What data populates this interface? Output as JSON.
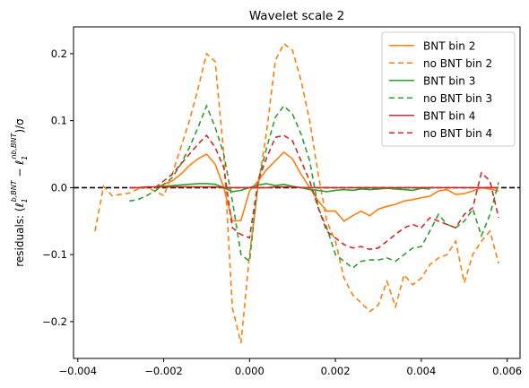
{
  "chart_data": {
    "type": "line",
    "title": "Wavelet scale 2",
    "xlabel": "",
    "ylabel": "residuals: (ℓ₁^{b,BNT} − ℓ₁^{nb,BNT})/σ",
    "ylabel_parts": {
      "prefix": "residuals: (",
      "sym1": "ℓ",
      "sub1": "1",
      "sup1": "b,BNT",
      "minus": " − ",
      "sym2": "ℓ",
      "sub2": "1",
      "sup2": "nb,BNT",
      "suffix": ")/σ"
    },
    "xlim": [
      -0.0041,
      0.0063
    ],
    "ylim": [
      -0.255,
      0.24
    ],
    "xticks": [
      -0.004,
      -0.002,
      0.0,
      0.002,
      0.004,
      0.006
    ],
    "xtick_labels": [
      "−0.004",
      "−0.002",
      "0.000",
      "0.002",
      "0.004",
      "0.006"
    ],
    "yticks": [
      -0.2,
      -0.1,
      0.0,
      0.1,
      0.2
    ],
    "ytick_labels": [
      "−0.2",
      "−0.1",
      "0.0",
      "0.1",
      "0.2"
    ],
    "grid": false,
    "legend_position": "top-right",
    "hline": {
      "y": 0,
      "color": "#000000",
      "style": "dashed"
    },
    "series": [
      {
        "name": "BNT bin 2",
        "color": "#ff7f0e",
        "style": "solid",
        "x": [
          -0.0022,
          -0.002,
          -0.0018,
          -0.0016,
          -0.0014,
          -0.0012,
          -0.001,
          -0.0008,
          -0.0006,
          -0.0004,
          -0.0002,
          0.0,
          0.0002,
          0.0004,
          0.0006,
          0.0008,
          0.001,
          0.0012,
          0.0014,
          0.0016,
          0.0018,
          0.002,
          0.0022,
          0.0024,
          0.0026,
          0.0028,
          0.003,
          0.0032,
          0.0034,
          0.0036,
          0.0038,
          0.004,
          0.0042,
          0.0044,
          0.0046,
          0.0048,
          0.005,
          0.0052,
          0.0054,
          0.0056,
          0.0058
        ],
        "y": [
          0.0,
          0.005,
          0.01,
          0.02,
          0.033,
          0.043,
          0.05,
          0.035,
          0.0,
          -0.05,
          -0.049,
          -0.005,
          0.01,
          0.027,
          0.04,
          0.053,
          0.043,
          0.02,
          0.0,
          -0.02,
          -0.035,
          -0.035,
          -0.05,
          -0.042,
          -0.035,
          -0.042,
          -0.032,
          -0.028,
          -0.025,
          -0.02,
          -0.018,
          -0.015,
          -0.013,
          -0.005,
          -0.003,
          -0.01,
          -0.009,
          -0.005,
          0.0,
          -0.002,
          -0.005
        ]
      },
      {
        "name": "no BNT bin 2",
        "color": "#ff7f0e",
        "style": "dashed",
        "x": [
          -0.0036,
          -0.0034,
          -0.0032,
          -0.003,
          -0.0028,
          -0.0026,
          -0.0024,
          -0.0022,
          -0.002,
          -0.0018,
          -0.0016,
          -0.0014,
          -0.0012,
          -0.001,
          -0.0008,
          -0.0006,
          -0.0004,
          -0.0002,
          0.0,
          0.0002,
          0.0004,
          0.0006,
          0.0008,
          0.001,
          0.0012,
          0.0014,
          0.0016,
          0.0018,
          0.002,
          0.0022,
          0.0024,
          0.0026,
          0.0028,
          0.003,
          0.0032,
          0.0034,
          0.0036,
          0.0038,
          0.004,
          0.0042,
          0.0044,
          0.0046,
          0.0048,
          0.005,
          0.0052,
          0.0054,
          0.0056,
          0.0058
        ],
        "y": [
          -0.065,
          0.002,
          -0.012,
          -0.01,
          -0.008,
          -0.002,
          0.0,
          -0.005,
          -0.012,
          0.02,
          0.06,
          0.1,
          0.148,
          0.2,
          0.188,
          0.05,
          -0.18,
          -0.232,
          -0.1,
          0.002,
          0.085,
          0.19,
          0.215,
          0.205,
          0.16,
          0.1,
          0.02,
          -0.05,
          -0.08,
          -0.135,
          -0.16,
          -0.172,
          -0.185,
          -0.175,
          -0.14,
          -0.178,
          -0.13,
          -0.145,
          -0.135,
          -0.115,
          -0.105,
          -0.1,
          -0.08,
          -0.142,
          -0.1,
          -0.08,
          -0.065,
          -0.113
        ]
      },
      {
        "name": "BNT bin 3",
        "color": "#2ca02c",
        "style": "solid",
        "x": [
          -0.0022,
          -0.002,
          -0.0018,
          -0.0016,
          -0.0014,
          -0.0012,
          -0.001,
          -0.0008,
          -0.0006,
          -0.0004,
          -0.0002,
          0.0,
          0.0002,
          0.0004,
          0.0006,
          0.0008,
          0.001,
          0.0012,
          0.0014,
          0.0016,
          0.0018,
          0.002,
          0.0022,
          0.0024,
          0.0026,
          0.0028,
          0.003,
          0.0032,
          0.0034,
          0.0036,
          0.0038,
          0.004,
          0.0042
        ],
        "y": [
          0.0,
          0.002,
          0.003,
          0.004,
          0.005,
          0.006,
          0.006,
          0.005,
          0.0,
          -0.006,
          -0.004,
          0.0,
          0.004,
          0.006,
          0.003,
          0.005,
          0.002,
          0.0,
          -0.003,
          -0.004,
          -0.006,
          -0.004,
          -0.003,
          -0.004,
          -0.002,
          -0.003,
          -0.002,
          -0.001,
          -0.002,
          -0.003,
          -0.004,
          -0.001,
          -0.002
        ]
      },
      {
        "name": "no BNT bin 3",
        "color": "#2ca02c",
        "style": "dashed",
        "x": [
          -0.0028,
          -0.0026,
          -0.0024,
          -0.0022,
          -0.002,
          -0.0018,
          -0.0016,
          -0.0014,
          -0.0012,
          -0.001,
          -0.0008,
          -0.0006,
          -0.0004,
          -0.0002,
          0.0,
          0.0002,
          0.0004,
          0.0006,
          0.0008,
          0.001,
          0.0012,
          0.0014,
          0.0016,
          0.0018,
          0.002,
          0.0022,
          0.0024,
          0.0026,
          0.0028,
          0.003,
          0.0032,
          0.0034,
          0.0036,
          0.0038,
          0.004,
          0.0042,
          0.0044,
          0.0046,
          0.0048,
          0.005,
          0.0052,
          0.0054,
          0.0056,
          0.0058
        ],
        "y": [
          -0.02,
          -0.018,
          -0.012,
          -0.005,
          0.005,
          0.015,
          0.035,
          0.06,
          0.09,
          0.122,
          0.09,
          0.05,
          -0.02,
          -0.1,
          -0.11,
          0.01,
          0.06,
          0.105,
          0.122,
          0.11,
          0.08,
          0.04,
          -0.03,
          -0.06,
          -0.1,
          -0.11,
          -0.12,
          -0.11,
          -0.108,
          -0.108,
          -0.105,
          -0.11,
          -0.1,
          -0.09,
          -0.088,
          -0.065,
          -0.04,
          -0.055,
          -0.06,
          -0.05,
          -0.032,
          -0.072,
          -0.04,
          0.008
        ]
      },
      {
        "name": "BNT bin 4",
        "color": "#d62728",
        "style": "solid",
        "x": [
          -0.0028,
          -0.0026,
          -0.0024,
          -0.0022,
          -0.002,
          -0.0018,
          -0.0016,
          -0.0014,
          -0.0012,
          -0.001,
          -0.0008,
          -0.0006,
          -0.0004,
          -0.0002,
          0.0,
          0.0002,
          0.0004,
          0.0006,
          0.0008,
          0.001,
          0.0012,
          0.0014,
          0.0016,
          0.0018,
          0.002,
          0.0022,
          0.0024,
          0.0026,
          0.0028,
          0.003,
          0.0032,
          0.0034,
          0.0036,
          0.0038,
          0.004,
          0.0042,
          0.0044,
          0.0046,
          0.0048,
          0.005,
          0.0052,
          0.0054,
          0.0056,
          0.0058
        ],
        "y": [
          0.0,
          0.0,
          0.001,
          0.001,
          0.001,
          0.001,
          0.001,
          0.001,
          0.001,
          0.001,
          0.001,
          0.0,
          0.0,
          0.0,
          0.0,
          0.0,
          0.0,
          0.001,
          0.001,
          0.001,
          0.0,
          0.0,
          0.0,
          0.0,
          0.0,
          0.0,
          0.0,
          0.0,
          0.0,
          0.0,
          0.0,
          0.0,
          0.0,
          0.0,
          0.0,
          0.0,
          0.0,
          0.0,
          0.0,
          0.0,
          0.0,
          0.0,
          0.0,
          0.0
        ]
      },
      {
        "name": "no BNT bin 4",
        "color": "#d62728",
        "style": "dashed",
        "x": [
          -0.0022,
          -0.002,
          -0.0018,
          -0.0016,
          -0.0014,
          -0.0012,
          -0.001,
          -0.0008,
          -0.0006,
          -0.0004,
          -0.0002,
          0.0,
          0.0002,
          0.0004,
          0.0006,
          0.0008,
          0.001,
          0.0012,
          0.0014,
          0.0016,
          0.0018,
          0.002,
          0.0022,
          0.0024,
          0.0026,
          0.0028,
          0.003,
          0.0032,
          0.0034,
          0.0036,
          0.0038,
          0.004,
          0.0042,
          0.0044,
          0.0046,
          0.0048,
          0.005,
          0.0052,
          0.0054,
          0.0056,
          0.0058
        ],
        "y": [
          0.0,
          0.01,
          0.02,
          0.035,
          0.05,
          0.065,
          0.078,
          0.06,
          0.03,
          -0.06,
          -0.07,
          -0.075,
          0.01,
          0.045,
          0.075,
          0.078,
          0.07,
          0.04,
          0.01,
          -0.03,
          -0.065,
          -0.075,
          -0.085,
          -0.09,
          -0.088,
          -0.092,
          -0.09,
          -0.08,
          -0.07,
          -0.06,
          -0.055,
          -0.06,
          -0.045,
          -0.05,
          -0.055,
          -0.06,
          -0.04,
          -0.03,
          0.022,
          0.01,
          -0.045
        ]
      }
    ]
  }
}
